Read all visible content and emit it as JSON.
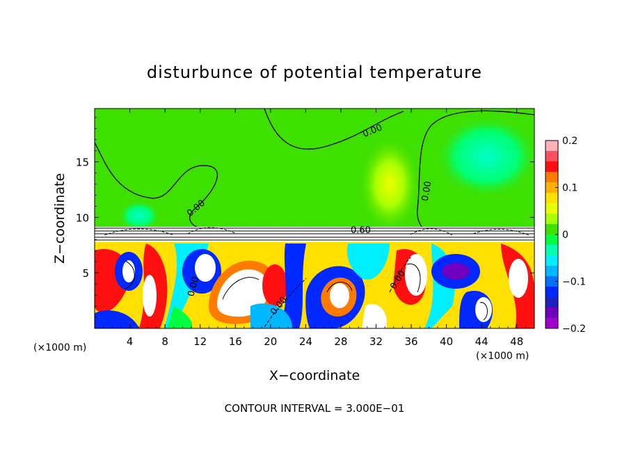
{
  "chart_data": {
    "type": "heatmap",
    "title": "disturbunce of potential temperature",
    "xlabel": "X−coordinate",
    "ylabel": "Z−coordinate",
    "x_unit_left": "(×1000 m)",
    "x_unit_right": "(×1000 m)",
    "x_ticks": [
      "4",
      "8",
      "12",
      "16",
      "20",
      "24",
      "28",
      "32",
      "36",
      "40",
      "44",
      "48"
    ],
    "x_tick_values": [
      4,
      8,
      12,
      16,
      20,
      24,
      28,
      32,
      36,
      40,
      44,
      48
    ],
    "y_ticks": [
      "5",
      "10",
      "15"
    ],
    "y_tick_values": [
      5,
      10,
      15
    ],
    "xlim": [
      0,
      50
    ],
    "ylim": [
      0,
      19.8
    ],
    "colorbar": {
      "ticks": [
        "0.2",
        "0.1",
        "0",
        "−0.1",
        "−0.2"
      ],
      "tick_values": [
        0.2,
        0.1,
        0,
        -0.1,
        -0.2
      ],
      "range": [
        -0.2,
        0.2
      ],
      "colors": [
        "#ffb0b8",
        "#ff5060",
        "#ff1010",
        "#ff7a00",
        "#ffb000",
        "#ffe000",
        "#e8ff00",
        "#a8ff00",
        "#40e000",
        "#00ff40",
        "#00ffb0",
        "#00f0ff",
        "#00b8ff",
        "#0070ff",
        "#0028ff",
        "#2020c0",
        "#7000c0",
        "#a000d0"
      ]
    },
    "contour_labels": [
      "0.00",
      "0.00",
      "0.00",
      "0.00",
      "0.00",
      "0.60"
    ],
    "contour_interval_note": "CONTOUR INTERVAL = 3.000E−01"
  }
}
